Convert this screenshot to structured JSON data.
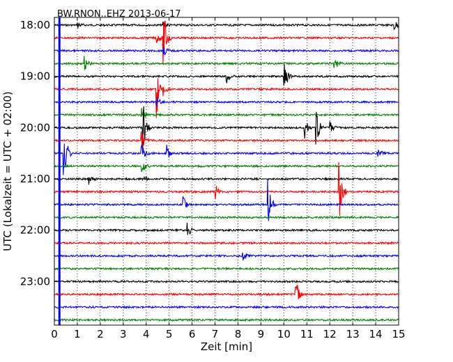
{
  "chart_data": {
    "type": "line",
    "title": "BW.RNON..EHZ 2013-06-17",
    "xlabel": "Zeit  [min]",
    "ylabel": "UTC (Lokalzeit = UTC + 02:00)",
    "xlim": [
      0,
      15
    ],
    "xticks": [
      "0",
      "1",
      "2",
      "3",
      "4",
      "5",
      "6",
      "7",
      "8",
      "9",
      "10",
      "11",
      "12",
      "13",
      "14",
      "15"
    ],
    "yticks": [
      "18:00",
      "19:00",
      "20:00",
      "21:00",
      "22:00",
      "23:00"
    ],
    "grid": "vertical dotted",
    "minutes_per_line": 15,
    "trace_count": 24,
    "trace_colors": [
      "#000000",
      "#ff0000",
      "#0000ff",
      "#008000"
    ],
    "series": [
      {
        "start": "18:00",
        "events": [
          {
            "x": 1.0,
            "amp": 0.2
          },
          {
            "x": 4.75,
            "amp": 0.25
          },
          {
            "x": 14.8,
            "amp": 0.3
          }
        ]
      },
      {
        "start": "18:15",
        "events": [
          {
            "x": 4.45,
            "amp": 0.3
          },
          {
            "x": 4.75,
            "amp": 1.6
          }
        ]
      },
      {
        "start": "18:30",
        "events": [
          {
            "x": 4.75,
            "amp": 0.3
          }
        ]
      },
      {
        "start": "18:45",
        "events": [
          {
            "x": 1.3,
            "amp": 0.4
          },
          {
            "x": 12.2,
            "amp": 0.4
          }
        ]
      },
      {
        "start": "19:00",
        "events": [
          {
            "x": 7.5,
            "amp": 0.5
          },
          {
            "x": 10.0,
            "amp": 0.9
          }
        ]
      },
      {
        "start": "19:15",
        "events": [
          {
            "x": 4.45,
            "amp": 1.5
          },
          {
            "x": 4.75,
            "amp": 0.3
          }
        ]
      },
      {
        "start": "19:30",
        "events": [
          {
            "x": 4.45,
            "amp": 0.3
          }
        ]
      },
      {
        "start": "19:45",
        "events": [
          {
            "x": 3.8,
            "amp": 0.3
          }
        ]
      },
      {
        "start": "20:00",
        "events": [
          {
            "x": 3.85,
            "amp": 1.6
          },
          {
            "x": 10.9,
            "amp": 0.6
          },
          {
            "x": 11.4,
            "amp": 1.0
          },
          {
            "x": 12.0,
            "amp": 0.3
          }
        ]
      },
      {
        "start": "20:15",
        "events": [
          {
            "x": 3.8,
            "amp": 0.5
          }
        ]
      },
      {
        "start": "20:30",
        "events": [
          {
            "x": 0.4,
            "amp": 1.8
          },
          {
            "x": 3.8,
            "amp": 0.5
          },
          {
            "x": 4.9,
            "amp": 0.4
          },
          {
            "x": 14.1,
            "amp": 0.3
          }
        ]
      },
      {
        "start": "20:45",
        "events": [
          {
            "x": 3.8,
            "amp": 0.4
          }
        ]
      },
      {
        "start": "21:00",
        "events": [
          {
            "x": 1.5,
            "amp": 0.3
          },
          {
            "x": 3.85,
            "amp": 0.3
          }
        ]
      },
      {
        "start": "21:15",
        "events": [
          {
            "x": 7.0,
            "amp": 0.6
          },
          {
            "x": 12.4,
            "amp": 1.7
          }
        ]
      },
      {
        "start": "21:30",
        "events": [
          {
            "x": 5.6,
            "amp": 0.4
          },
          {
            "x": 9.3,
            "amp": 1.3
          }
        ]
      },
      {
        "start": "21:45",
        "events": []
      },
      {
        "start": "22:00",
        "events": [
          {
            "x": 5.8,
            "amp": 0.4
          }
        ]
      },
      {
        "start": "22:15",
        "events": []
      },
      {
        "start": "22:30",
        "events": [
          {
            "x": 8.2,
            "amp": 0.3
          }
        ]
      },
      {
        "start": "22:45",
        "events": []
      },
      {
        "start": "23:00",
        "events": []
      },
      {
        "start": "23:15",
        "events": [
          {
            "x": 10.5,
            "amp": 1.0
          }
        ]
      },
      {
        "start": "23:30",
        "events": []
      },
      {
        "start": "23:45",
        "events": []
      }
    ],
    "highlight": {
      "x": 0.22,
      "color": "#0000ff"
    }
  }
}
